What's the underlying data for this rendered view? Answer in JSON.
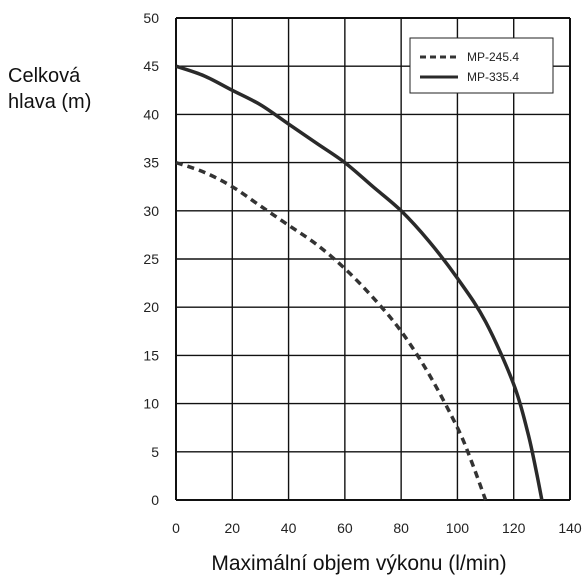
{
  "chart_data": {
    "type": "line",
    "title": "",
    "xlabel": "Maximální objem výkonu (l/min)",
    "ylabel_lines": [
      "Celková",
      "hlava (m)"
    ],
    "xlim": [
      0,
      140
    ],
    "ylim": [
      0,
      50
    ],
    "xticks": [
      0,
      20,
      40,
      60,
      80,
      100,
      120,
      140
    ],
    "yticks": [
      0,
      5,
      10,
      15,
      20,
      25,
      30,
      35,
      40,
      45,
      50
    ],
    "grid": true,
    "legend_position": "top-right",
    "series": [
      {
        "name": "MP-245.4",
        "style": "dashed",
        "color": "#333333",
        "points": [
          [
            0,
            35
          ],
          [
            10,
            34
          ],
          [
            20,
            32.5
          ],
          [
            30,
            30.5
          ],
          [
            40,
            28.5
          ],
          [
            50,
            26.5
          ],
          [
            60,
            24
          ],
          [
            70,
            21
          ],
          [
            80,
            17.5
          ],
          [
            90,
            13
          ],
          [
            100,
            7.5
          ],
          [
            105,
            4
          ],
          [
            110,
            0
          ]
        ]
      },
      {
        "name": "MP-335.4",
        "style": "solid",
        "color": "#2a2a2a",
        "points": [
          [
            0,
            45
          ],
          [
            10,
            44
          ],
          [
            20,
            42.5
          ],
          [
            30,
            41
          ],
          [
            40,
            39
          ],
          [
            50,
            37
          ],
          [
            60,
            35
          ],
          [
            70,
            32.5
          ],
          [
            80,
            30
          ],
          [
            90,
            26.8
          ],
          [
            100,
            23
          ],
          [
            110,
            18.5
          ],
          [
            120,
            12
          ],
          [
            125,
            7
          ],
          [
            128,
            3
          ],
          [
            130,
            0
          ]
        ]
      }
    ]
  }
}
